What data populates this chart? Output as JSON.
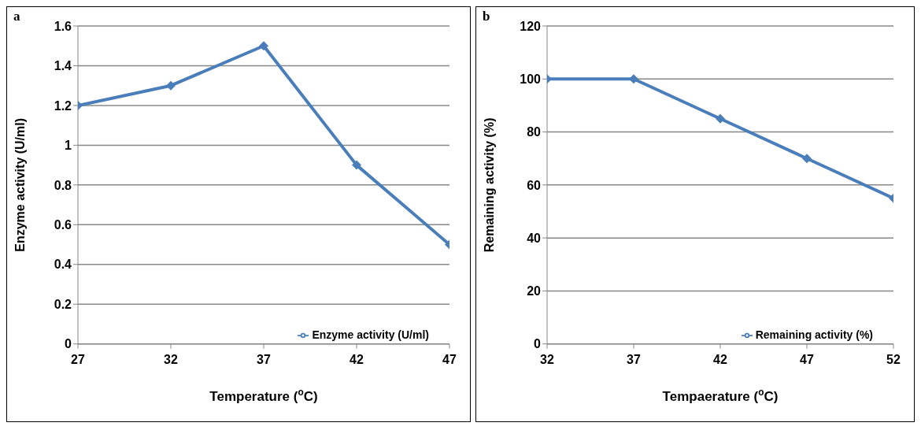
{
  "chart_data": [
    {
      "type": "line",
      "x": [
        27,
        32,
        37,
        42,
        47
      ],
      "xlim": [
        27,
        47
      ],
      "xticks": [
        27,
        32,
        37,
        42,
        47
      ],
      "ylim": [
        0,
        1.6
      ],
      "yticks": [
        0,
        0.2,
        0.4,
        0.6,
        0.8,
        1,
        1.2,
        1.4,
        1.6
      ],
      "xlabel": "Temperature ($^{o}$C)",
      "ylabel": "Enzyme activity (U/ml)",
      "annotations": [
        "a"
      ],
      "grid": "y",
      "legend": "bottom right",
      "marker": "diamond",
      "line_style": "solid",
      "series": [
        {
          "name": "Enzyme activity (U/ml)",
          "color": "#4a7ebb",
          "values": [
            1.2,
            1.3,
            1.5,
            0.9,
            0.5
          ]
        }
      ]
    },
    {
      "type": "line",
      "x": [
        32,
        37,
        42,
        47,
        52
      ],
      "xlim": [
        32,
        52
      ],
      "xticks": [
        32,
        37,
        42,
        47,
        52
      ],
      "ylim": [
        0,
        120
      ],
      "yticks": [
        0,
        20,
        40,
        60,
        80,
        100,
        120
      ],
      "xlabel": "Tempaerature ($^{o}$C)",
      "ylabel": "Remaining activity (%)",
      "annotations": [
        "b"
      ],
      "grid": "y",
      "legend": "bottom right",
      "marker": "diamond",
      "line_style": "solid",
      "series": [
        {
          "name": "Remaining activity (%)",
          "color": "#4a7ebb",
          "values": [
            100,
            100,
            85,
            70,
            55
          ]
        }
      ]
    }
  ]
}
